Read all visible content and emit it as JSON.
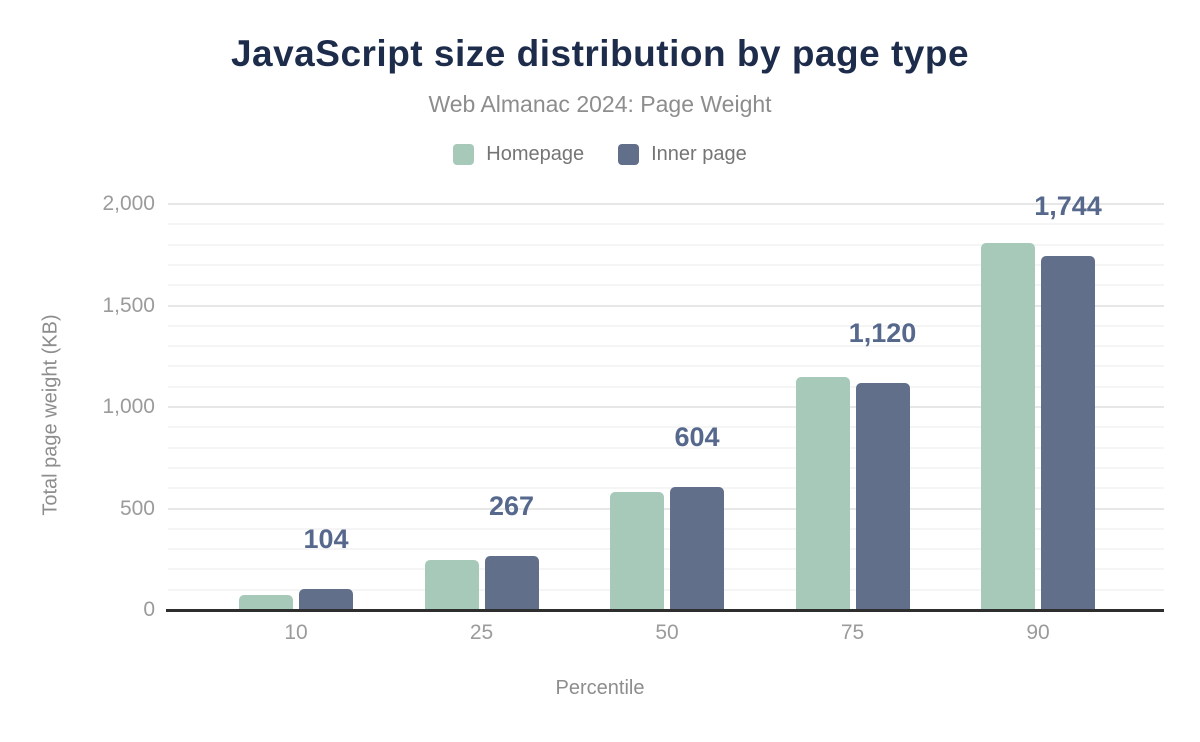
{
  "chart_data": {
    "type": "bar",
    "title": "JavaScript size distribution by page type",
    "subtitle": "Web Almanac 2024: Page Weight",
    "xlabel": "Percentile",
    "ylabel": "Total page weight (KB)",
    "categories": [
      "10",
      "25",
      "50",
      "75",
      "90"
    ],
    "series": [
      {
        "name": "Homepage",
        "color": "#a7c9ba",
        "values": [
          76,
          248,
          582,
          1150,
          1810
        ]
      },
      {
        "name": "Inner page",
        "color": "#616f8a",
        "values": [
          104,
          267,
          604,
          1120,
          1744
        ]
      }
    ],
    "data_labels": {
      "for_series": "Inner page",
      "values": [
        "104",
        "267",
        "604",
        "1,120",
        "1,744"
      ],
      "color": "#56688c"
    },
    "y_axis": {
      "tick_labels": [
        "0",
        "500",
        "1,000",
        "1,500",
        "2,000"
      ],
      "tick_values": [
        0,
        500,
        1000,
        1500,
        2000
      ],
      "range": [
        0,
        2000
      ],
      "minor_step": 100
    },
    "legend_position": "top",
    "grid": {
      "major_color": "#e7e7e7",
      "minor_color": "#f5f5f5",
      "axis_line_color": "#2e2e2e"
    }
  },
  "styles": {
    "title_color": "#1e2c4c",
    "subtitle_color": "#8d8d8d",
    "legend_text_color": "#757575",
    "axis_text_color": "#9b9b9b",
    "axis_title_color": "#8d8d8d",
    "background_color": "#ffffff"
  }
}
